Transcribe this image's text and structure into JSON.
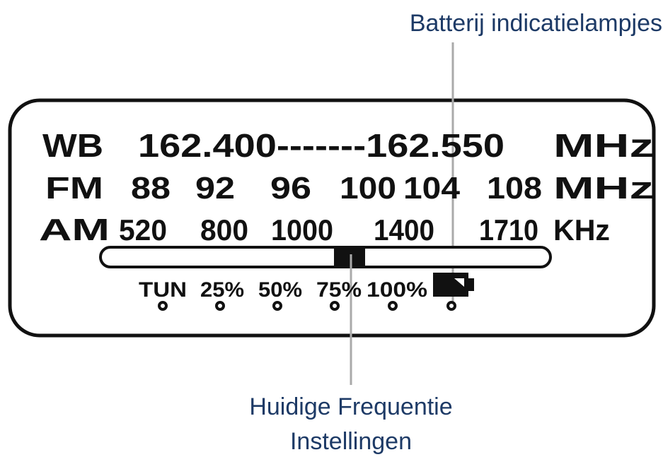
{
  "callouts": {
    "battery": "Batterij indicatielampjes",
    "frequency": [
      "Huidige Frequentie",
      "Instellingen"
    ]
  },
  "dial": {
    "rows": [
      {
        "band": "WB",
        "marks": [
          "162.400-------162.550"
        ],
        "unit": "MHz"
      },
      {
        "band": "FM",
        "marks": [
          "88",
          "92",
          "96",
          "100",
          "104",
          "108"
        ],
        "unit": "MHz"
      },
      {
        "band": "AM",
        "marks": [
          "520",
          "800",
          "1000",
          "1400",
          "1710"
        ],
        "unit": "KHz"
      }
    ],
    "indicators": [
      "TUN",
      "25%",
      "50%",
      "75%",
      "100%"
    ]
  }
}
